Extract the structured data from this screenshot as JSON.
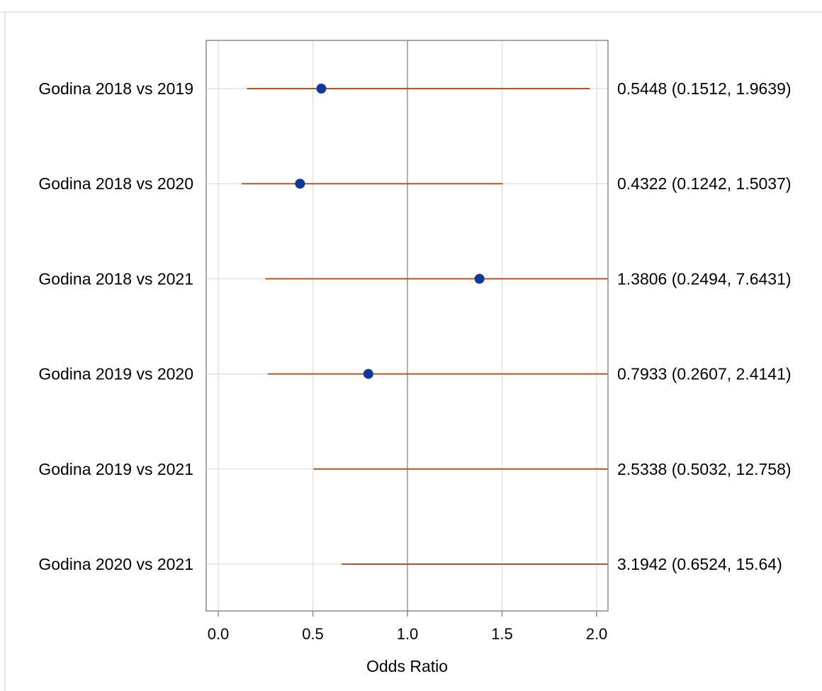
{
  "chart_data": {
    "type": "forest",
    "title": "",
    "xlabel": "Odds Ratio",
    "ylabel": "",
    "xlim": [
      0.0,
      2.0
    ],
    "xticks": [
      "0.0",
      "0.5",
      "1.0",
      "1.5",
      "2.0"
    ],
    "reference_line": 1.0,
    "grid": true,
    "colors": {
      "point": "#0b3a9c",
      "ci": "#b3552a",
      "grid": "#dddddd",
      "reference": "#999999",
      "frame": "#8c8c8c"
    },
    "rows": [
      {
        "label": "Godina 2018 vs 2019",
        "estimate": 0.5448,
        "lower": 0.1512,
        "upper": 1.9639,
        "text": "0.5448 (0.1512, 1.9639)"
      },
      {
        "label": "Godina 2018 vs 2020",
        "estimate": 0.4322,
        "lower": 0.1242,
        "upper": 1.5037,
        "text": "0.4322 (0.1242, 1.5037)"
      },
      {
        "label": "Godina 2018 vs 2021",
        "estimate": 1.3806,
        "lower": 0.2494,
        "upper": 7.6431,
        "text": "1.3806 (0.2494, 7.6431)"
      },
      {
        "label": "Godina 2019 vs 2020",
        "estimate": 0.7933,
        "lower": 0.2607,
        "upper": 2.4141,
        "text": "0.7933 (0.2607, 2.4141)"
      },
      {
        "label": "Godina 2019 vs 2021",
        "estimate": 2.5338,
        "lower": 0.5032,
        "upper": 12.758,
        "text": "2.5338 (0.5032, 12.758)"
      },
      {
        "label": "Godina 2020 vs 2021",
        "estimate": 3.1942,
        "lower": 0.6524,
        "upper": 15.64,
        "text": "3.1942 (0.6524, 15.64)"
      }
    ]
  }
}
